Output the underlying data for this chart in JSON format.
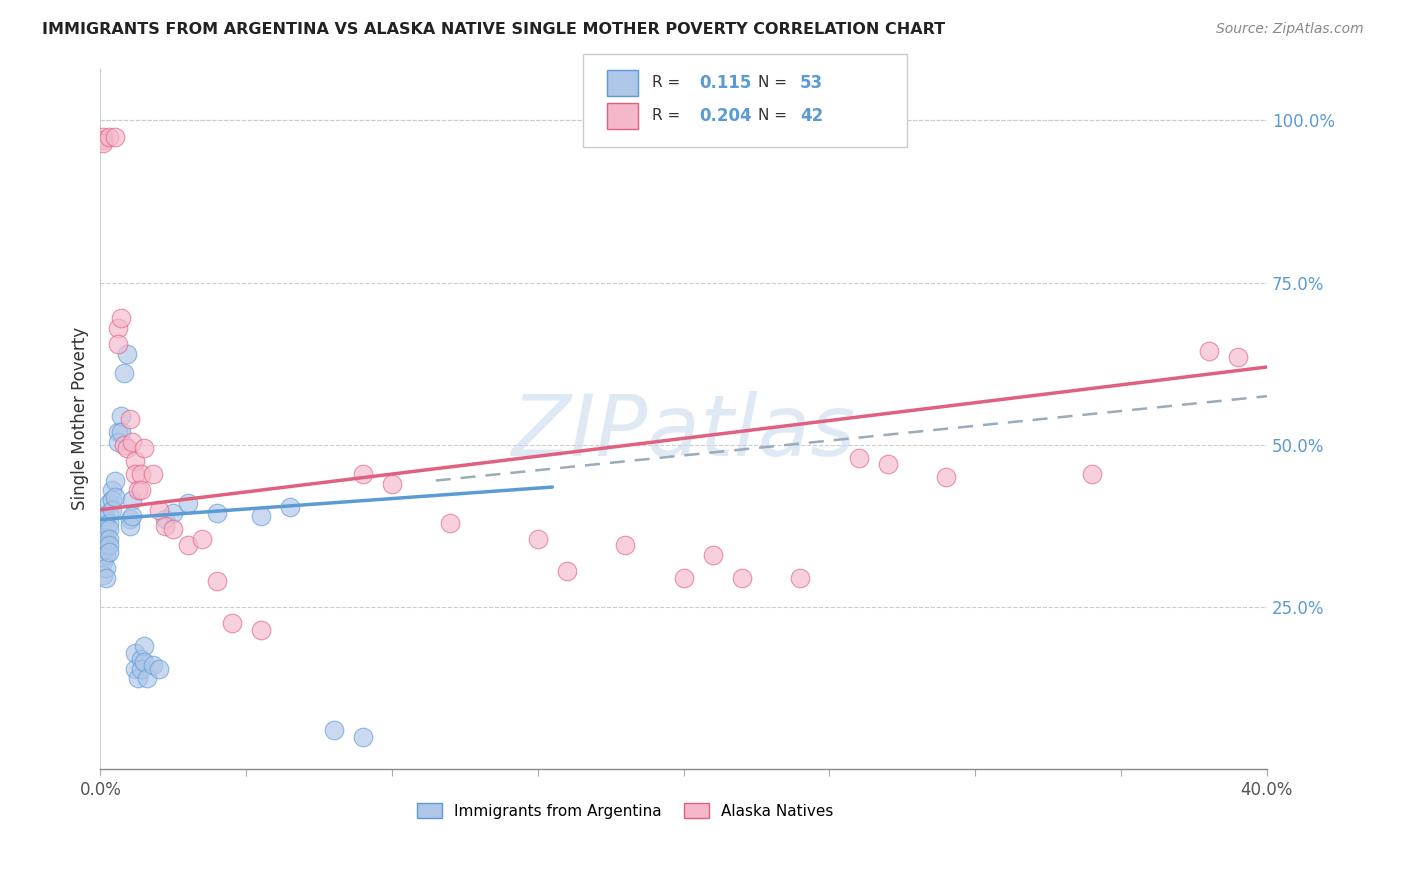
{
  "title": "IMMIGRANTS FROM ARGENTINA VS ALASKA NATIVE SINGLE MOTHER POVERTY CORRELATION CHART",
  "source": "Source: ZipAtlas.com",
  "ylabel": "Single Mother Poverty",
  "xlim": [
    0.0,
    0.4
  ],
  "ylim": [
    0.0,
    1.08
  ],
  "right_yticks": [
    0.25,
    0.5,
    0.75,
    1.0
  ],
  "right_yticklabels": [
    "25.0%",
    "50.0%",
    "75.0%",
    "100.0%"
  ],
  "watermark": "ZIPatlas",
  "blue_color": "#aec6e8",
  "pink_color": "#f5b8cb",
  "blue_line_color": "#5b9bd5",
  "pink_line_color": "#e06080",
  "dashed_line_color": "#9aabbb",
  "blue_scatter": [
    [
      0.001,
      0.355
    ],
    [
      0.001,
      0.34
    ],
    [
      0.001,
      0.32
    ],
    [
      0.001,
      0.3
    ],
    [
      0.002,
      0.385
    ],
    [
      0.002,
      0.37
    ],
    [
      0.002,
      0.355
    ],
    [
      0.002,
      0.345
    ],
    [
      0.002,
      0.34
    ],
    [
      0.002,
      0.33
    ],
    [
      0.002,
      0.31
    ],
    [
      0.002,
      0.295
    ],
    [
      0.003,
      0.41
    ],
    [
      0.003,
      0.395
    ],
    [
      0.003,
      0.38
    ],
    [
      0.003,
      0.37
    ],
    [
      0.003,
      0.355
    ],
    [
      0.003,
      0.345
    ],
    [
      0.003,
      0.335
    ],
    [
      0.004,
      0.43
    ],
    [
      0.004,
      0.415
    ],
    [
      0.004,
      0.4
    ],
    [
      0.005,
      0.445
    ],
    [
      0.005,
      0.42
    ],
    [
      0.006,
      0.52
    ],
    [
      0.006,
      0.505
    ],
    [
      0.007,
      0.545
    ],
    [
      0.007,
      0.52
    ],
    [
      0.008,
      0.61
    ],
    [
      0.009,
      0.64
    ],
    [
      0.01,
      0.385
    ],
    [
      0.01,
      0.375
    ],
    [
      0.011,
      0.415
    ],
    [
      0.011,
      0.39
    ],
    [
      0.012,
      0.18
    ],
    [
      0.012,
      0.155
    ],
    [
      0.013,
      0.14
    ],
    [
      0.014,
      0.17
    ],
    [
      0.014,
      0.155
    ],
    [
      0.015,
      0.19
    ],
    [
      0.015,
      0.165
    ],
    [
      0.016,
      0.14
    ],
    [
      0.018,
      0.16
    ],
    [
      0.02,
      0.155
    ],
    [
      0.022,
      0.385
    ],
    [
      0.025,
      0.395
    ],
    [
      0.03,
      0.41
    ],
    [
      0.04,
      0.395
    ],
    [
      0.055,
      0.39
    ],
    [
      0.065,
      0.405
    ],
    [
      0.08,
      0.06
    ],
    [
      0.09,
      0.05
    ]
  ],
  "pink_scatter": [
    [
      0.001,
      0.975
    ],
    [
      0.001,
      0.97
    ],
    [
      0.001,
      0.965
    ],
    [
      0.003,
      0.975
    ],
    [
      0.005,
      0.975
    ],
    [
      0.006,
      0.68
    ],
    [
      0.006,
      0.655
    ],
    [
      0.007,
      0.695
    ],
    [
      0.008,
      0.5
    ],
    [
      0.009,
      0.495
    ],
    [
      0.01,
      0.54
    ],
    [
      0.011,
      0.505
    ],
    [
      0.012,
      0.475
    ],
    [
      0.012,
      0.455
    ],
    [
      0.013,
      0.43
    ],
    [
      0.014,
      0.455
    ],
    [
      0.014,
      0.43
    ],
    [
      0.015,
      0.495
    ],
    [
      0.018,
      0.455
    ],
    [
      0.02,
      0.4
    ],
    [
      0.022,
      0.375
    ],
    [
      0.025,
      0.37
    ],
    [
      0.03,
      0.345
    ],
    [
      0.035,
      0.355
    ],
    [
      0.04,
      0.29
    ],
    [
      0.045,
      0.225
    ],
    [
      0.055,
      0.215
    ],
    [
      0.09,
      0.455
    ],
    [
      0.1,
      0.44
    ],
    [
      0.12,
      0.38
    ],
    [
      0.15,
      0.355
    ],
    [
      0.16,
      0.305
    ],
    [
      0.18,
      0.345
    ],
    [
      0.2,
      0.295
    ],
    [
      0.21,
      0.33
    ],
    [
      0.22,
      0.295
    ],
    [
      0.24,
      0.295
    ],
    [
      0.26,
      0.48
    ],
    [
      0.27,
      0.47
    ],
    [
      0.29,
      0.45
    ],
    [
      0.34,
      0.455
    ],
    [
      0.38,
      0.645
    ],
    [
      0.39,
      0.635
    ]
  ],
  "blue_trend_x": [
    0.0,
    0.155
  ],
  "blue_trend_y": [
    0.385,
    0.435
  ],
  "pink_trend_x": [
    0.0,
    0.4
  ],
  "pink_trend_y": [
    0.4,
    0.62
  ],
  "dashed_trend_x": [
    0.115,
    0.4
  ],
  "dashed_trend_y": [
    0.445,
    0.575
  ]
}
